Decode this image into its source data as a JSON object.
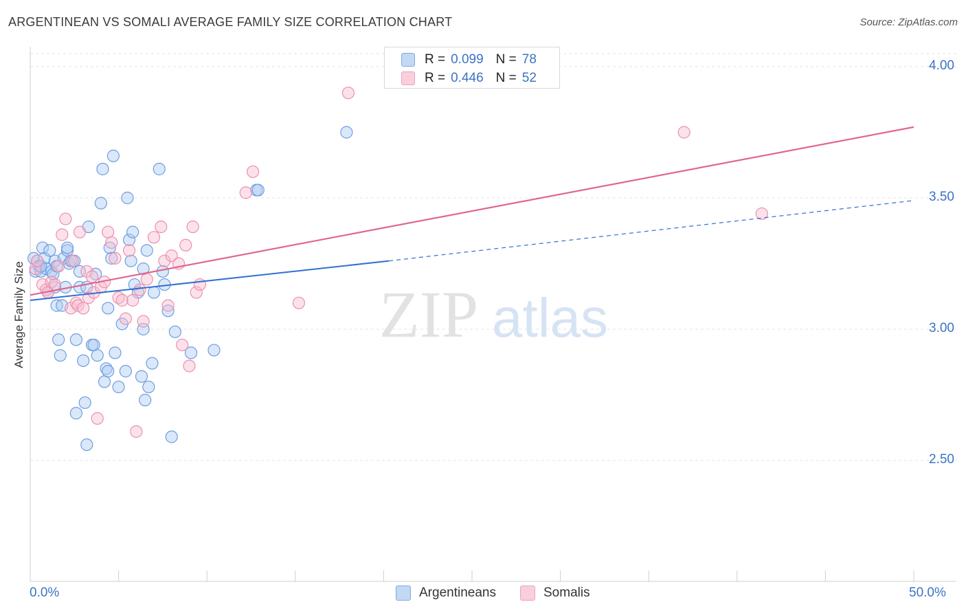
{
  "header": {
    "title": "ARGENTINEAN VS SOMALI AVERAGE FAMILY SIZE CORRELATION CHART",
    "source": "Source: ZipAtlas.com"
  },
  "legend_top": {
    "rows": [
      {
        "r_label": "R =",
        "r_value": "0.099",
        "n_label": "N =",
        "n_value": "78"
      },
      {
        "r_label": "R =",
        "r_value": "0.446",
        "n_label": "N =",
        "n_value": "52"
      }
    ]
  },
  "legend_bottom": {
    "series1": "Argentineans",
    "series2": "Somalis"
  },
  "axis": {
    "x_min_label": "0.0%",
    "x_max_label": "50.0%",
    "y_label": "Average Family Size"
  },
  "watermark": {
    "zip": "ZIP",
    "atlas": "atlas"
  },
  "colors": {
    "blue_fill": "#aecbf2",
    "blue_stroke": "#6f9de0",
    "blue_line": "#2f6fcf",
    "pink_fill": "#f7bfd0",
    "pink_stroke": "#ec8fae",
    "pink_line": "#e0668e",
    "axis_text": "#3b73c4"
  },
  "chart_data": {
    "type": "scatter",
    "title": "ARGENTINEAN VS SOMALI AVERAGE FAMILY SIZE CORRELATION CHART",
    "xlabel": "",
    "ylabel": "Average Family Size",
    "xlim": [
      0,
      50
    ],
    "ylim": [
      2.06,
      4.08
    ],
    "y_ticks": [
      2.5,
      3.0,
      3.5,
      4.0
    ],
    "y_tick_labels": [
      "2.50",
      "3.00",
      "3.50",
      "4.00"
    ],
    "x_tick_labels": [
      "0.0%",
      "50.0%"
    ],
    "grid": true,
    "series": [
      {
        "name": "Argentineans",
        "r": 0.099,
        "n": 78,
        "trend": {
          "x0": 0,
          "y0": 3.11,
          "x1": 20.3,
          "y1": 3.26,
          "dash_x1": 50,
          "dash_y1": 3.49
        },
        "points": [
          [
            0.2,
            3.27
          ],
          [
            0.3,
            3.22
          ],
          [
            0.4,
            3.26
          ],
          [
            0.5,
            3.24
          ],
          [
            0.6,
            3.22
          ],
          [
            0.7,
            3.31
          ],
          [
            0.8,
            3.27
          ],
          [
            0.9,
            3.23
          ],
          [
            1.0,
            3.14
          ],
          [
            1.1,
            3.3
          ],
          [
            1.2,
            3.22
          ],
          [
            1.3,
            3.21
          ],
          [
            1.4,
            3.26
          ],
          [
            1.5,
            3.24
          ],
          [
            1.4,
            3.16
          ],
          [
            1.5,
            3.09
          ],
          [
            1.6,
            2.96
          ],
          [
            1.7,
            2.9
          ],
          [
            1.8,
            3.09
          ],
          [
            1.9,
            3.27
          ],
          [
            2.0,
            3.16
          ],
          [
            2.1,
            3.3
          ],
          [
            2.2,
            3.25
          ],
          [
            2.3,
            3.26
          ],
          [
            2.5,
            3.26
          ],
          [
            2.6,
            2.96
          ],
          [
            2.8,
            3.22
          ],
          [
            2.8,
            3.16
          ],
          [
            3.0,
            2.88
          ],
          [
            3.1,
            2.72
          ],
          [
            3.2,
            3.16
          ],
          [
            3.2,
            2.56
          ],
          [
            3.3,
            3.39
          ],
          [
            3.5,
            2.94
          ],
          [
            3.6,
            2.94
          ],
          [
            2.6,
            2.68
          ],
          [
            3.7,
            3.21
          ],
          [
            3.8,
            2.9
          ],
          [
            4.0,
            3.48
          ],
          [
            4.1,
            3.61
          ],
          [
            4.2,
            2.8
          ],
          [
            4.3,
            2.85
          ],
          [
            4.4,
            3.08
          ],
          [
            4.5,
            3.31
          ],
          [
            4.6,
            3.27
          ],
          [
            4.7,
            3.66
          ],
          [
            4.8,
            2.91
          ],
          [
            5.0,
            2.78
          ],
          [
            5.2,
            3.02
          ],
          [
            5.4,
            2.84
          ],
          [
            5.5,
            3.5
          ],
          [
            5.6,
            3.34
          ],
          [
            5.7,
            3.26
          ],
          [
            5.8,
            3.37
          ],
          [
            5.9,
            3.17
          ],
          [
            6.1,
            3.14
          ],
          [
            6.3,
            2.82
          ],
          [
            6.4,
            3.23
          ],
          [
            6.5,
            2.73
          ],
          [
            6.6,
            3.3
          ],
          [
            6.7,
            2.78
          ],
          [
            6.9,
            2.87
          ],
          [
            7.0,
            3.14
          ],
          [
            7.3,
            3.61
          ],
          [
            7.5,
            3.22
          ],
          [
            7.6,
            3.17
          ],
          [
            7.8,
            3.07
          ],
          [
            8.0,
            2.59
          ],
          [
            8.2,
            2.99
          ],
          [
            9.1,
            2.91
          ],
          [
            10.4,
            2.92
          ],
          [
            12.8,
            3.53
          ],
          [
            12.9,
            3.53
          ],
          [
            17.9,
            3.75
          ],
          [
            6.4,
            3.0
          ],
          [
            4.4,
            2.84
          ],
          [
            2.1,
            3.31
          ],
          [
            0.6,
            3.24
          ]
        ]
      },
      {
        "name": "Somalis",
        "r": 0.446,
        "n": 52,
        "trend": {
          "x0": 0,
          "y0": 3.13,
          "x1": 50,
          "y1": 3.77
        },
        "points": [
          [
            0.3,
            3.23
          ],
          [
            0.4,
            3.26
          ],
          [
            0.7,
            3.17
          ],
          [
            0.9,
            3.15
          ],
          [
            1.0,
            3.14
          ],
          [
            1.2,
            3.18
          ],
          [
            1.4,
            3.17
          ],
          [
            1.6,
            3.24
          ],
          [
            1.8,
            3.36
          ],
          [
            2.0,
            3.42
          ],
          [
            2.3,
            3.08
          ],
          [
            2.4,
            3.26
          ],
          [
            2.6,
            3.1
          ],
          [
            2.7,
            3.09
          ],
          [
            2.8,
            3.37
          ],
          [
            3.0,
            3.08
          ],
          [
            3.2,
            3.22
          ],
          [
            3.3,
            3.12
          ],
          [
            3.5,
            3.2
          ],
          [
            3.6,
            3.14
          ],
          [
            3.8,
            2.66
          ],
          [
            4.0,
            3.16
          ],
          [
            4.2,
            3.18
          ],
          [
            4.4,
            3.37
          ],
          [
            4.6,
            3.33
          ],
          [
            4.8,
            3.27
          ],
          [
            5.0,
            3.12
          ],
          [
            5.2,
            3.11
          ],
          [
            5.4,
            3.04
          ],
          [
            5.6,
            3.3
          ],
          [
            5.8,
            3.11
          ],
          [
            6.0,
            2.61
          ],
          [
            6.2,
            3.15
          ],
          [
            6.4,
            3.03
          ],
          [
            6.6,
            3.19
          ],
          [
            7.0,
            3.35
          ],
          [
            7.4,
            3.39
          ],
          [
            7.6,
            3.26
          ],
          [
            7.8,
            3.09
          ],
          [
            8.0,
            3.28
          ],
          [
            8.4,
            3.25
          ],
          [
            8.6,
            2.94
          ],
          [
            8.8,
            3.32
          ],
          [
            9.0,
            2.86
          ],
          [
            9.2,
            3.39
          ],
          [
            9.4,
            3.14
          ],
          [
            9.6,
            3.17
          ],
          [
            12.2,
            3.52
          ],
          [
            12.6,
            3.6
          ],
          [
            15.2,
            3.1
          ],
          [
            18.0,
            3.9
          ],
          [
            37.0,
            3.75
          ]
        ]
      },
      {
        "name": "Somalis (extra)",
        "hidden_in_legend": true,
        "points": [
          [
            41.4,
            3.44
          ]
        ]
      }
    ]
  }
}
